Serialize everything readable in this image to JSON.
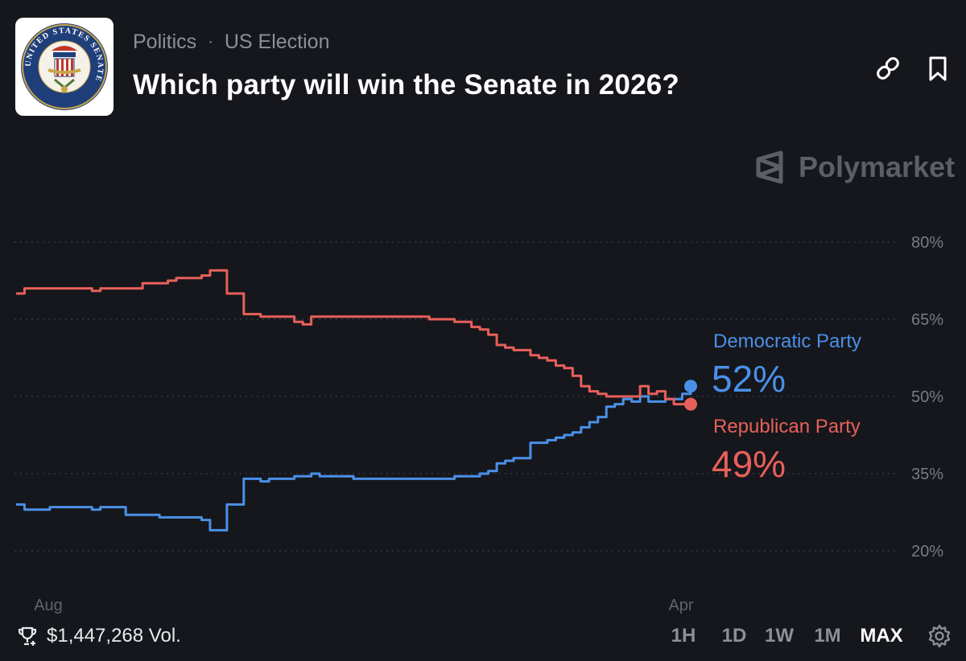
{
  "header": {
    "category": "Politics",
    "separator": "·",
    "subcategory": "US Election",
    "title": "Which party will win the Senate in 2026?",
    "seal_text": "UNITED STATES SENATE"
  },
  "brand": {
    "name": "Polymarket"
  },
  "chart_data": {
    "type": "line",
    "ylim": [
      20,
      80
    ],
    "y_ticks": [
      "80%",
      "65%",
      "50%",
      "35%",
      "20%"
    ],
    "x_ticks": [
      "Aug",
      "Apr"
    ],
    "series": [
      {
        "name": "Democratic Party",
        "color": "#4a90e8",
        "current": "52%",
        "values": [
          29,
          28,
          28,
          28,
          28.5,
          28.5,
          28.5,
          28.5,
          28.5,
          28,
          28.5,
          28.5,
          28.5,
          27,
          27,
          27,
          27,
          26.5,
          26.5,
          26.5,
          26.5,
          26.5,
          26,
          24,
          24,
          29,
          29,
          34,
          34,
          33.5,
          34,
          34,
          34,
          34.5,
          34.5,
          35,
          34.5,
          34.5,
          34.5,
          34.5,
          34,
          34,
          34,
          34,
          34,
          34,
          34,
          34,
          34,
          34,
          34,
          34,
          34.5,
          34.5,
          34.5,
          35,
          35.5,
          37,
          37.5,
          38,
          38,
          41,
          41,
          41.5,
          42,
          42.5,
          43,
          44,
          45,
          46,
          48,
          48.5,
          49.5,
          49,
          50,
          49,
          49,
          49.5,
          49.5,
          50.5,
          52
        ]
      },
      {
        "name": "Republican Party",
        "color": "#e8605a",
        "current": "49%",
        "values": [
          70,
          71,
          71,
          71,
          71,
          71,
          71,
          71,
          71,
          70.5,
          71,
          71,
          71,
          71,
          71,
          72,
          72,
          72,
          72.5,
          73,
          73,
          73,
          73.5,
          74.5,
          74.5,
          70,
          70,
          66,
          66,
          65.5,
          65.5,
          65.5,
          65.5,
          64.5,
          64,
          65.5,
          65.5,
          65.5,
          65.5,
          65.5,
          65.5,
          65.5,
          65.5,
          65.5,
          65.5,
          65.5,
          65.5,
          65.5,
          65.5,
          65,
          65,
          65,
          64.5,
          64.5,
          63.5,
          63,
          62,
          60,
          59.5,
          59,
          59,
          58,
          57.5,
          57,
          56,
          55.5,
          54,
          52,
          51,
          50.5,
          50,
          50,
          50,
          50,
          52,
          50.5,
          51,
          49.5,
          48.5,
          48.5,
          48.5
        ]
      }
    ]
  },
  "footer": {
    "volume": "$1,447,268 Vol.",
    "ranges": [
      "1H",
      "1D",
      "1W",
      "1M",
      "MAX"
    ],
    "active_range": "MAX"
  }
}
